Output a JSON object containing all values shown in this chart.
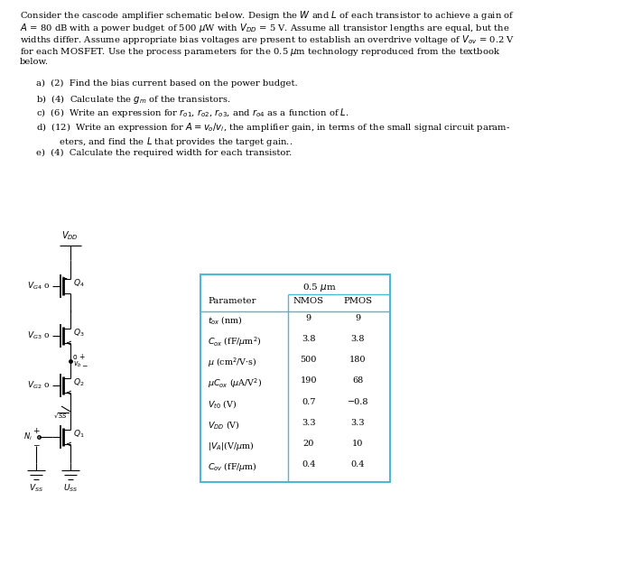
{
  "bg_color": "#ffffff",
  "table_color": "#4db8d4",
  "title_lines": [
    "Consider the cascode amplifier schematic below. Design the $W$ and $L$ of each transistor to achieve a gain of",
    "$A$ = 80 dB with a power budget of 500 $\\mu$W with $V_{DD}$ = 5 V. Assume all transistor lengths are equal, but the",
    "widths differ. Assume appropriate bias voltages are present to establish an overdrive voltage of $V_{ov}$ = 0.2 V",
    "for each MOSFET. Use the process parameters for the 0.5 $\\mu$m technology reproduced from the textbook",
    "below."
  ],
  "q_lines": [
    "a)  (2)  Find the bias current based on the power budget.",
    "b)  (4)  Calculate the $g_m$ of the transistors.",
    "c)  (6)  Write an expression for $r_{o1}$, $r_{o2}$, $r_{o3}$, and $r_{o4}$ as a function of $L$.",
    "d)  (12)  Write an expression for $A = v_o/v_i$, the amplifier gain, in terms of the small signal circuit param-",
    "        eters, and find the $L$ that provides the target gain..",
    "e)  (4)  Calculate the required width for each transistor."
  ],
  "row_labels": [
    "$t_{ox}$ (nm)",
    "$C_{ox}$ (fF/$\\mu$m$^2$)",
    "$\\mu$ (cm$^2$/V$\\cdot$s)",
    "$\\mu C_{ox}$ ($\\mu$A/V$^2$)",
    "$V_{t0}$ (V)",
    "$V_{DD}$ (V)",
    "$|V_A|$(V/$\\mu$m)",
    "$C_{ov}$ (fF/$\\mu$m)"
  ],
  "nmos_vals": [
    "9",
    "3.8",
    "500",
    "190",
    "0.7",
    "3.3",
    "20",
    "0.4"
  ],
  "pmos_vals": [
    "9",
    "3.8",
    "180",
    "68",
    "−0.8",
    "3.3",
    "10",
    "0.4"
  ]
}
